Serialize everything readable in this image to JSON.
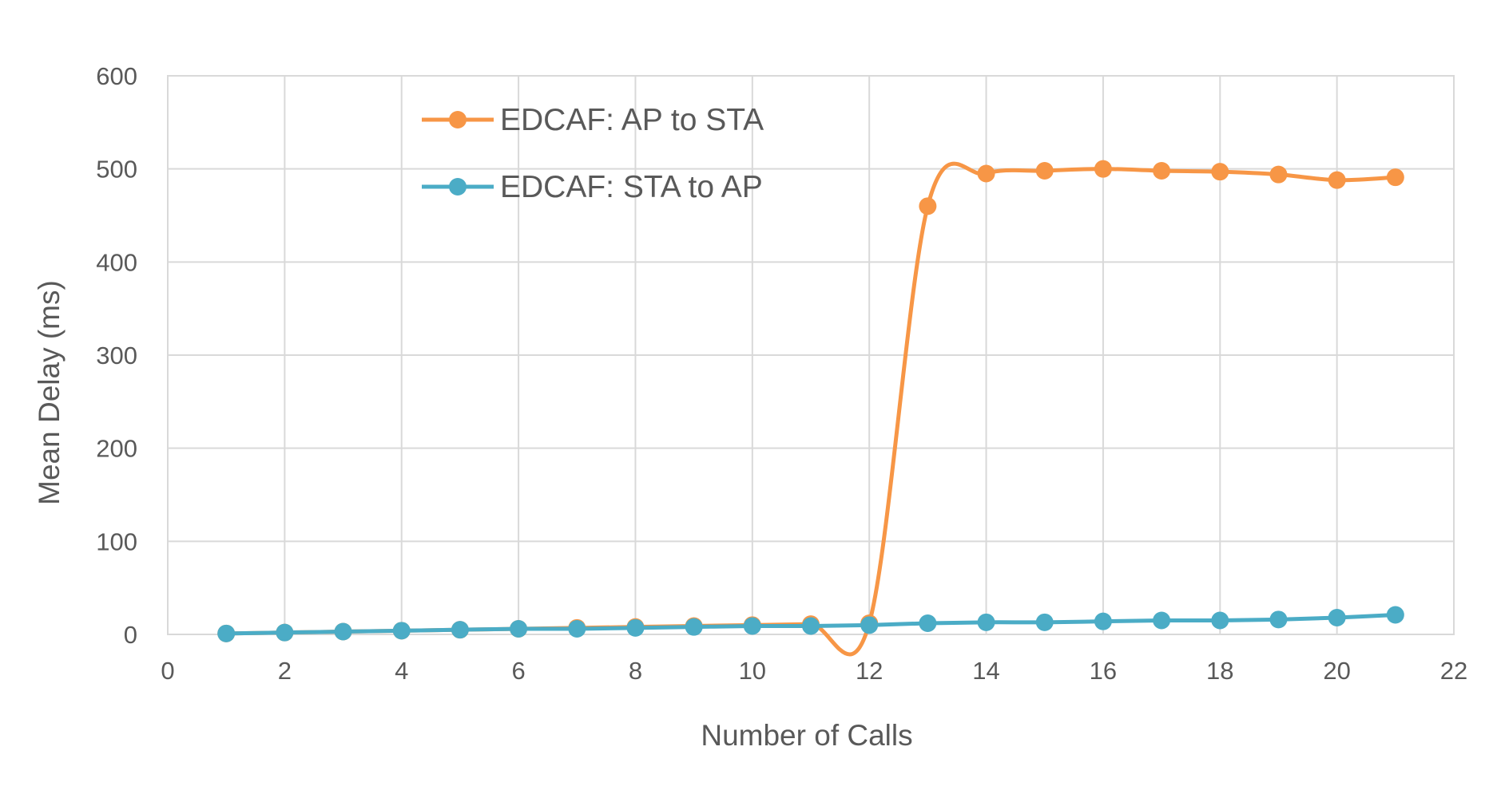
{
  "chart_data": {
    "type": "line",
    "title": "",
    "xlabel": "Number of Calls",
    "ylabel": "Mean Delay (ms)",
    "xlim": [
      0,
      22
    ],
    "ylim": [
      0,
      600
    ],
    "x_ticks": [
      "0",
      "2",
      "4",
      "6",
      "8",
      "10",
      "12",
      "14",
      "16",
      "18",
      "20",
      "22"
    ],
    "y_ticks": [
      "0",
      "100",
      "200",
      "300",
      "400",
      "500",
      "600"
    ],
    "grid": true,
    "smooth": true,
    "legend_position": "top-left inside plot",
    "x": [
      1,
      2,
      3,
      4,
      5,
      6,
      7,
      8,
      9,
      10,
      11,
      12,
      13,
      14,
      15,
      16,
      17,
      18,
      19,
      20,
      21
    ],
    "series": [
      {
        "name": "EDCAF: AP to STA",
        "color": "#f79646",
        "values": [
          1,
          2,
          3,
          4,
          5,
          6,
          7,
          8,
          9,
          10,
          11,
          12,
          460,
          495,
          498,
          500,
          498,
          497,
          494,
          488,
          491
        ]
      },
      {
        "name": "EDCAF: STA to AP",
        "color": "#4bacc6",
        "values": [
          1,
          2,
          3,
          4,
          5,
          6,
          6,
          7,
          8,
          9,
          9,
          10,
          12,
          13,
          13,
          14,
          15,
          15,
          16,
          18,
          21
        ]
      }
    ]
  }
}
